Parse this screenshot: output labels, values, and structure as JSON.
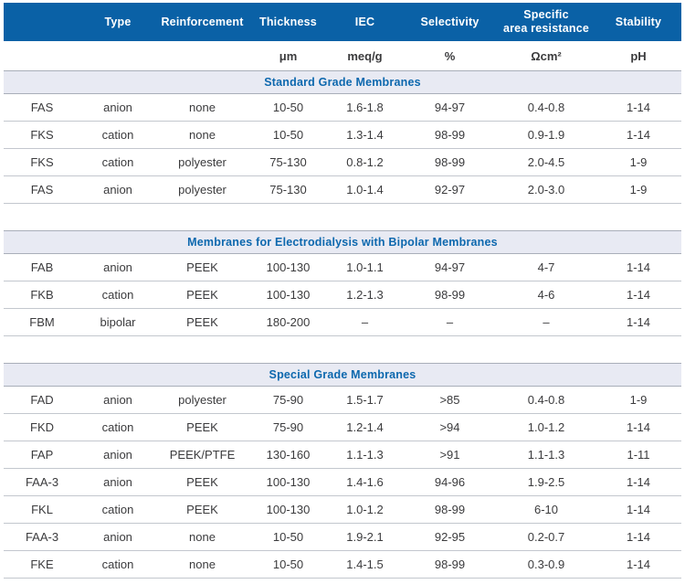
{
  "table": {
    "columns": [
      "",
      "Type",
      "Reinforcement",
      "Thickness",
      "IEC",
      "Selectivity",
      "Specific\narea resistance",
      "Stability"
    ],
    "units": [
      "",
      "",
      "",
      "μm",
      "meq/g",
      "%",
      "Ωcm²",
      "pH"
    ],
    "colors": {
      "header_bg": "#0A61A6",
      "header_text": "#FFFFFF",
      "section_band_bg": "#E8EAF3",
      "section_title_text": "#0D68AE",
      "band_border": "#A9AEB9",
      "row_border": "#C3C7CE",
      "body_text": "#3B3B3D"
    },
    "sections": [
      {
        "title": "Standard Grade Membranes",
        "rows": [
          [
            "FAS",
            "anion",
            "none",
            "10-50",
            "1.6-1.8",
            "94-97",
            "0.4-0.8",
            "1-14"
          ],
          [
            "FKS",
            "cation",
            "none",
            "10-50",
            "1.3-1.4",
            "98-99",
            "0.9-1.9",
            "1-14"
          ],
          [
            "FKS",
            "cation",
            "polyester",
            "75-130",
            "0.8-1.2",
            "98-99",
            "2.0-4.5",
            "1-9"
          ],
          [
            "FAS",
            "anion",
            "polyester",
            "75-130",
            "1.0-1.4",
            "92-97",
            "2.0-3.0",
            "1-9"
          ]
        ]
      },
      {
        "title": "Membranes for Electrodialysis with Bipolar Membranes",
        "rows": [
          [
            "FAB",
            "anion",
            "PEEK",
            "100-130",
            "1.0-1.1",
            "94-97",
            "4-7",
            "1-14"
          ],
          [
            "FKB",
            "cation",
            "PEEK",
            "100-130",
            "1.2-1.3",
            "98-99",
            "4-6",
            "1-14"
          ],
          [
            "FBM",
            "bipolar",
            "PEEK",
            "180-200",
            "–",
            "–",
            "–",
            "1-14"
          ]
        ]
      },
      {
        "title": "Special Grade Membranes",
        "rows": [
          [
            "FAD",
            "anion",
            "polyester",
            "75-90",
            "1.5-1.7",
            ">85",
            "0.4-0.8",
            "1-9"
          ],
          [
            "FKD",
            "cation",
            "PEEK",
            "75-90",
            "1.2-1.4",
            ">94",
            "1.0-1.2",
            "1-14"
          ],
          [
            "FAP",
            "anion",
            "PEEK/PTFE",
            "130-160",
            "1.1-1.3",
            ">91",
            "1.1-1.3",
            "1-11"
          ],
          [
            "FAA-3",
            "anion",
            "PEEK",
            "100-130",
            "1.4-1.6",
            "94-96",
            "1.9-2.5",
            "1-14"
          ],
          [
            "FKL",
            "cation",
            "PEEK",
            "100-130",
            "1.0-1.2",
            "98-99",
            "6-10",
            "1-14"
          ],
          [
            "FAA-3",
            "anion",
            "none",
            "10-50",
            "1.9-2.1",
            "92-95",
            "0.2-0.7",
            "1-14"
          ],
          [
            "FKE",
            "cation",
            "none",
            "10-50",
            "1.4-1.5",
            "98-99",
            "0.3-0.9",
            "1-14"
          ]
        ]
      }
    ]
  }
}
